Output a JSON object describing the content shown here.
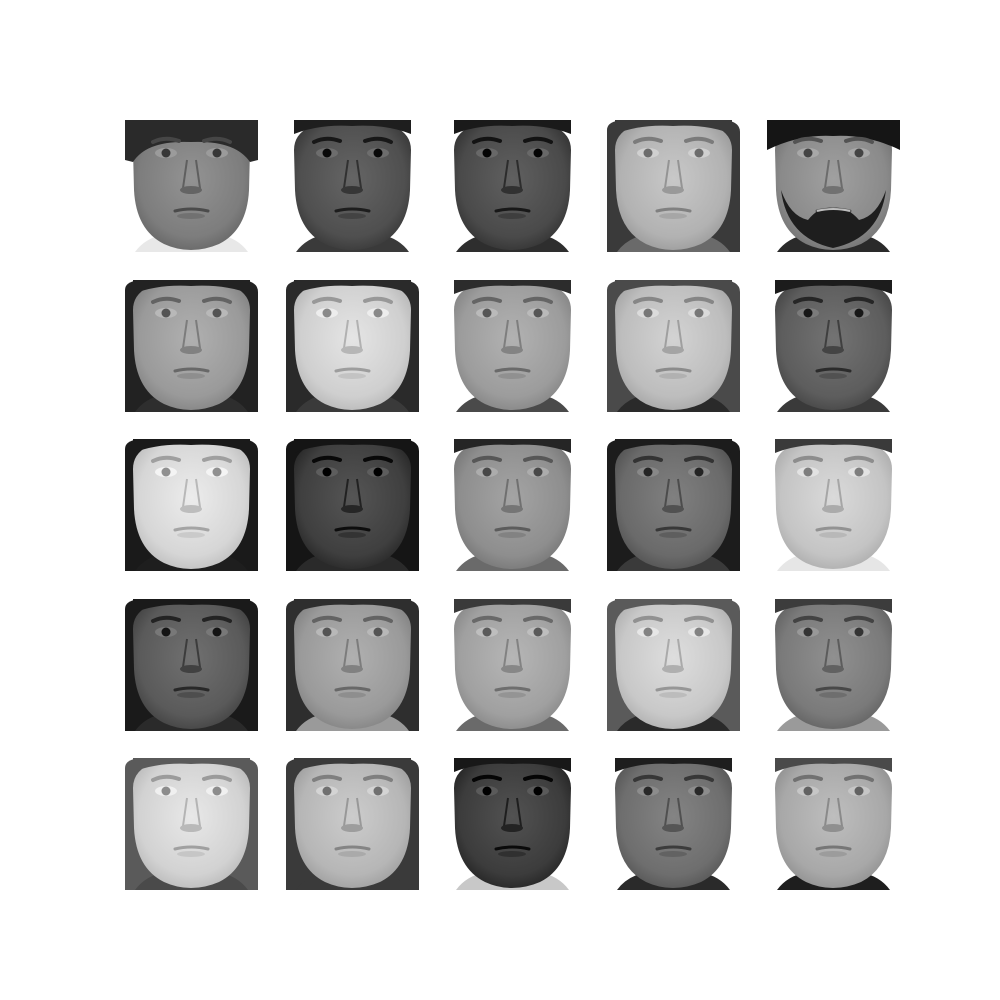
{
  "figure": {
    "rows": 5,
    "cols": 5,
    "background": "#ffffff",
    "tiles": [
      {
        "label": "face-r1c1",
        "skin": "#7d7d7d",
        "hair": "#2a2a2a",
        "bg": "#ffffff",
        "hairStyle": "bangs",
        "beard": false,
        "shirt": "#e8e8e8"
      },
      {
        "label": "face-r1c2",
        "skin": "#4f4f4f",
        "hair": "#1e1e1e",
        "bg": "#ffffff",
        "hairStyle": "short",
        "beard": false,
        "shirt": "#3a3a3a"
      },
      {
        "label": "face-r1c3",
        "skin": "#4a4a4a",
        "hair": "#1a1a1a",
        "bg": "#ffffff",
        "hairStyle": "short",
        "beard": false,
        "shirt": "#2e2e2e"
      },
      {
        "label": "face-r1c4",
        "skin": "#b2b2b2",
        "hair": "#3a3a3a",
        "bg": "#ffffff",
        "hairStyle": "side",
        "beard": false,
        "shirt": "#6a6a6a"
      },
      {
        "label": "face-r1c5",
        "skin": "#8a8a8a",
        "hair": "#151515",
        "bg": "#ffffff",
        "hairStyle": "turban",
        "beard": true,
        "shirt": "#2a2a2a"
      },
      {
        "label": "face-r2c1",
        "skin": "#9a9a9a",
        "hair": "#222222",
        "bg": "#ffffff",
        "hairStyle": "long",
        "beard": false,
        "shirt": "#2e2e2e"
      },
      {
        "label": "face-r2c2",
        "skin": "#cfcfcf",
        "hair": "#2a2a2a",
        "bg": "#ffffff",
        "hairStyle": "long",
        "beard": false,
        "shirt": "#3a3a3a"
      },
      {
        "label": "face-r2c3",
        "skin": "#9c9c9c",
        "hair": "#2c2c2c",
        "bg": "#ffffff",
        "hairStyle": "short",
        "beard": false,
        "shirt": "#4a4a4a"
      },
      {
        "label": "face-r2c4",
        "skin": "#bdbdbd",
        "hair": "#4a4a4a",
        "bg": "#ffffff",
        "hairStyle": "long",
        "beard": false,
        "shirt": "#2a2a2a"
      },
      {
        "label": "face-r2c5",
        "skin": "#5d5d5d",
        "hair": "#1c1c1c",
        "bg": "#ffffff",
        "hairStyle": "short",
        "beard": false,
        "shirt": "#3a3a3a"
      },
      {
        "label": "face-r3c1",
        "skin": "#d6d6d6",
        "hair": "#1a1a1a",
        "bg": "#ffffff",
        "hairStyle": "long",
        "beard": false,
        "shirt": "#1e1e1e"
      },
      {
        "label": "face-r3c2",
        "skin": "#3f3f3f",
        "hair": "#151515",
        "bg": "#ffffff",
        "hairStyle": "long",
        "beard": false,
        "shirt": "#2a2a2a"
      },
      {
        "label": "face-r3c3",
        "skin": "#8e8e8e",
        "hair": "#252525",
        "bg": "#ffffff",
        "hairStyle": "short",
        "beard": false,
        "shirt": "#6a6a6a"
      },
      {
        "label": "face-r3c4",
        "skin": "#6a6a6a",
        "hair": "#1c1c1c",
        "bg": "#ffffff",
        "hairStyle": "side",
        "beard": false,
        "shirt": "#3a3a3a"
      },
      {
        "label": "face-r3c5",
        "skin": "#c4c4c4",
        "hair": "#3a3a3a",
        "bg": "#ffffff",
        "hairStyle": "short",
        "beard": false,
        "shirt": "#e6e6e6"
      },
      {
        "label": "face-r4c1",
        "skin": "#5a5a5a",
        "hair": "#1a1a1a",
        "bg": "#ffffff",
        "hairStyle": "long",
        "beard": false,
        "shirt": "#2a2a2a"
      },
      {
        "label": "face-r4c2",
        "skin": "#9a9a9a",
        "hair": "#2e2e2e",
        "bg": "#ffffff",
        "hairStyle": "long",
        "beard": false,
        "shirt": "#9a9a9a"
      },
      {
        "label": "face-r4c3",
        "skin": "#a0a0a0",
        "hair": "#3a3a3a",
        "bg": "#ffffff",
        "hairStyle": "short",
        "beard": false,
        "shirt": "#6a6a6a"
      },
      {
        "label": "face-r4c4",
        "skin": "#c8c8c8",
        "hair": "#5a5a5a",
        "bg": "#ffffff",
        "hairStyle": "long",
        "beard": false,
        "shirt": "#2a2a2a"
      },
      {
        "label": "face-r4c5",
        "skin": "#7a7a7a",
        "hair": "#3c3c3c",
        "bg": "#ffffff",
        "hairStyle": "short",
        "beard": false,
        "shirt": "#9a9a9a"
      },
      {
        "label": "face-r5c1",
        "skin": "#d2d2d2",
        "hair": "#5a5a5a",
        "bg": "#ffffff",
        "hairStyle": "long",
        "beard": false,
        "shirt": "#4a4a4a"
      },
      {
        "label": "face-r5c2",
        "skin": "#b6b6b6",
        "hair": "#3a3a3a",
        "bg": "#ffffff",
        "hairStyle": "long",
        "beard": false,
        "shirt": "#3a3a3a"
      },
      {
        "label": "face-r5c3",
        "skin": "#3c3c3c",
        "hair": "#181818",
        "bg": "#ffffff",
        "hairStyle": "short",
        "beard": false,
        "shirt": "#c8c8c8"
      },
      {
        "label": "face-r5c4",
        "skin": "#6e6e6e",
        "hair": "#1e1e1e",
        "bg": "#ffffff",
        "hairStyle": "short",
        "beard": false,
        "shirt": "#2a2a2a"
      },
      {
        "label": "face-r5c5",
        "skin": "#a8a8a8",
        "hair": "#4a4a4a",
        "bg": "#ffffff",
        "hairStyle": "short",
        "beard": false,
        "shirt": "#1e1e1e"
      }
    ]
  }
}
